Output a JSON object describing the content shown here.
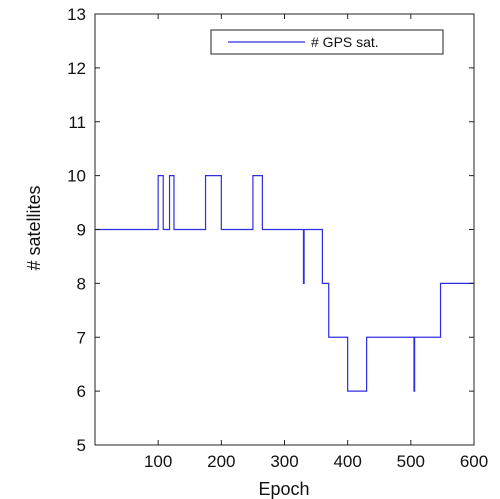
{
  "chart_data": {
    "type": "line",
    "xlabel": "Epoch",
    "ylabel": "# satellites",
    "xlim": [
      0,
      600
    ],
    "ylim": [
      5,
      13
    ],
    "xticks": [
      100,
      200,
      300,
      400,
      500,
      600
    ],
    "yticks": [
      5,
      6,
      7,
      8,
      9,
      10,
      11,
      12,
      13
    ],
    "grid": false,
    "legend_placement": "top-right",
    "series": [
      {
        "name": "# GPS sat.",
        "color": "#2e2ee0",
        "x": [
          0,
          100,
          100,
          108,
          108,
          118,
          118,
          125,
          125,
          175,
          175,
          200,
          200,
          250,
          250,
          265,
          265,
          330,
          330,
          331,
          331,
          360,
          360,
          370,
          370,
          400,
          400,
          430,
          430,
          505,
          505,
          506,
          506,
          547,
          547,
          600
        ],
        "y": [
          9,
          9,
          10,
          10,
          9,
          9,
          10,
          10,
          9,
          9,
          10,
          10,
          9,
          9,
          10,
          10,
          9,
          9,
          8,
          8,
          9,
          9,
          8,
          8,
          7,
          7,
          6,
          6,
          7,
          7,
          6,
          6,
          7,
          7,
          8,
          8
        ]
      }
    ]
  }
}
